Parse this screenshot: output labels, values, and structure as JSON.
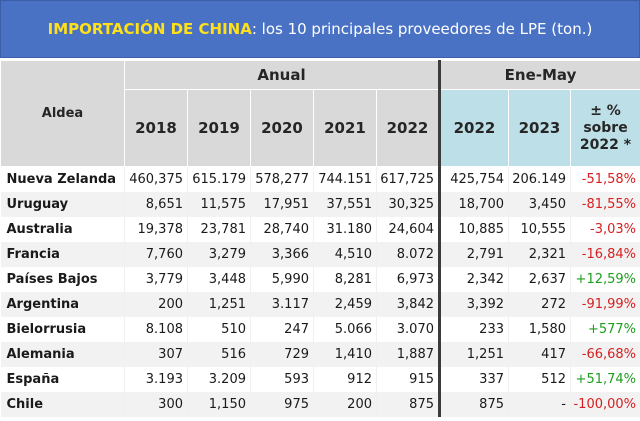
{
  "title": {
    "highlight": "IMPORTACIÓN DE CHINA",
    "rest": ": los 10 principales proveedores de LPE (ton.)"
  },
  "headers": {
    "row_label": "Aldea",
    "group_anual": "Anual",
    "group_enemay": "Ene-May",
    "anual_years": [
      "2018",
      "2019",
      "2020",
      "2021",
      "2022"
    ],
    "enemay_years": [
      "2022",
      "2023"
    ],
    "pct": "± %\nsobre\n2022 *"
  },
  "colors": {
    "banner": "#4a72c4",
    "highlight": "#ffe01a",
    "negative": "#d62020",
    "positive": "#1e9e1e"
  },
  "rows": [
    {
      "country": "Nueva Zelanda",
      "anual": [
        "460,375",
        "615.179",
        "578,277",
        "744.151",
        "617,725"
      ],
      "enemay": [
        "425,754",
        "206.149"
      ],
      "pct": "-51,58%",
      "trend": "neg"
    },
    {
      "country": "Uruguay",
      "anual": [
        "8,651",
        "11,575",
        "17,951",
        "37,551",
        "30,325"
      ],
      "enemay": [
        "18,700",
        "3,450"
      ],
      "pct": "-81,55%",
      "trend": "neg"
    },
    {
      "country": "Australia",
      "anual": [
        "19,378",
        "23,781",
        "28,740",
        "31.180",
        "24,604"
      ],
      "enemay": [
        "10,885",
        "10,555"
      ],
      "pct": "-3,03%",
      "trend": "neg"
    },
    {
      "country": "Francia",
      "anual": [
        "7,760",
        "3,279",
        "3,366",
        "4,510",
        "8.072"
      ],
      "enemay": [
        "2,791",
        "2,321"
      ],
      "pct": "-16,84%",
      "trend": "neg"
    },
    {
      "country": "Países Bajos",
      "anual": [
        "3,779",
        "3,448",
        "5,990",
        "8,281",
        "6,973"
      ],
      "enemay": [
        "2,342",
        "2,637"
      ],
      "pct": "+12,59%",
      "trend": "pos"
    },
    {
      "country": "Argentina",
      "anual": [
        "200",
        "1,251",
        "3.117",
        "2,459",
        "3,842"
      ],
      "enemay": [
        "3,392",
        "272"
      ],
      "pct": "-91,99%",
      "trend": "neg"
    },
    {
      "country": "Bielorrusia",
      "anual": [
        "8.108",
        "510",
        "247",
        "5.066",
        "3.070"
      ],
      "enemay": [
        "233",
        "1,580"
      ],
      "pct": "+577%",
      "trend": "pos"
    },
    {
      "country": "Alemania",
      "anual": [
        "307",
        "516",
        "729",
        "1,410",
        "1,887"
      ],
      "enemay": [
        "1,251",
        "417"
      ],
      "pct": "-66,68%",
      "trend": "neg"
    },
    {
      "country": "España",
      "anual": [
        "3.193",
        "3.209",
        "593",
        "912",
        "915"
      ],
      "enemay": [
        "337",
        "512"
      ],
      "pct": "+51,74%",
      "trend": "pos"
    },
    {
      "country": "Chile",
      "anual": [
        "300",
        "1,150",
        "975",
        "200",
        "875"
      ],
      "enemay": [
        "875",
        "-"
      ],
      "pct": "-100,00%",
      "trend": "neg"
    }
  ]
}
